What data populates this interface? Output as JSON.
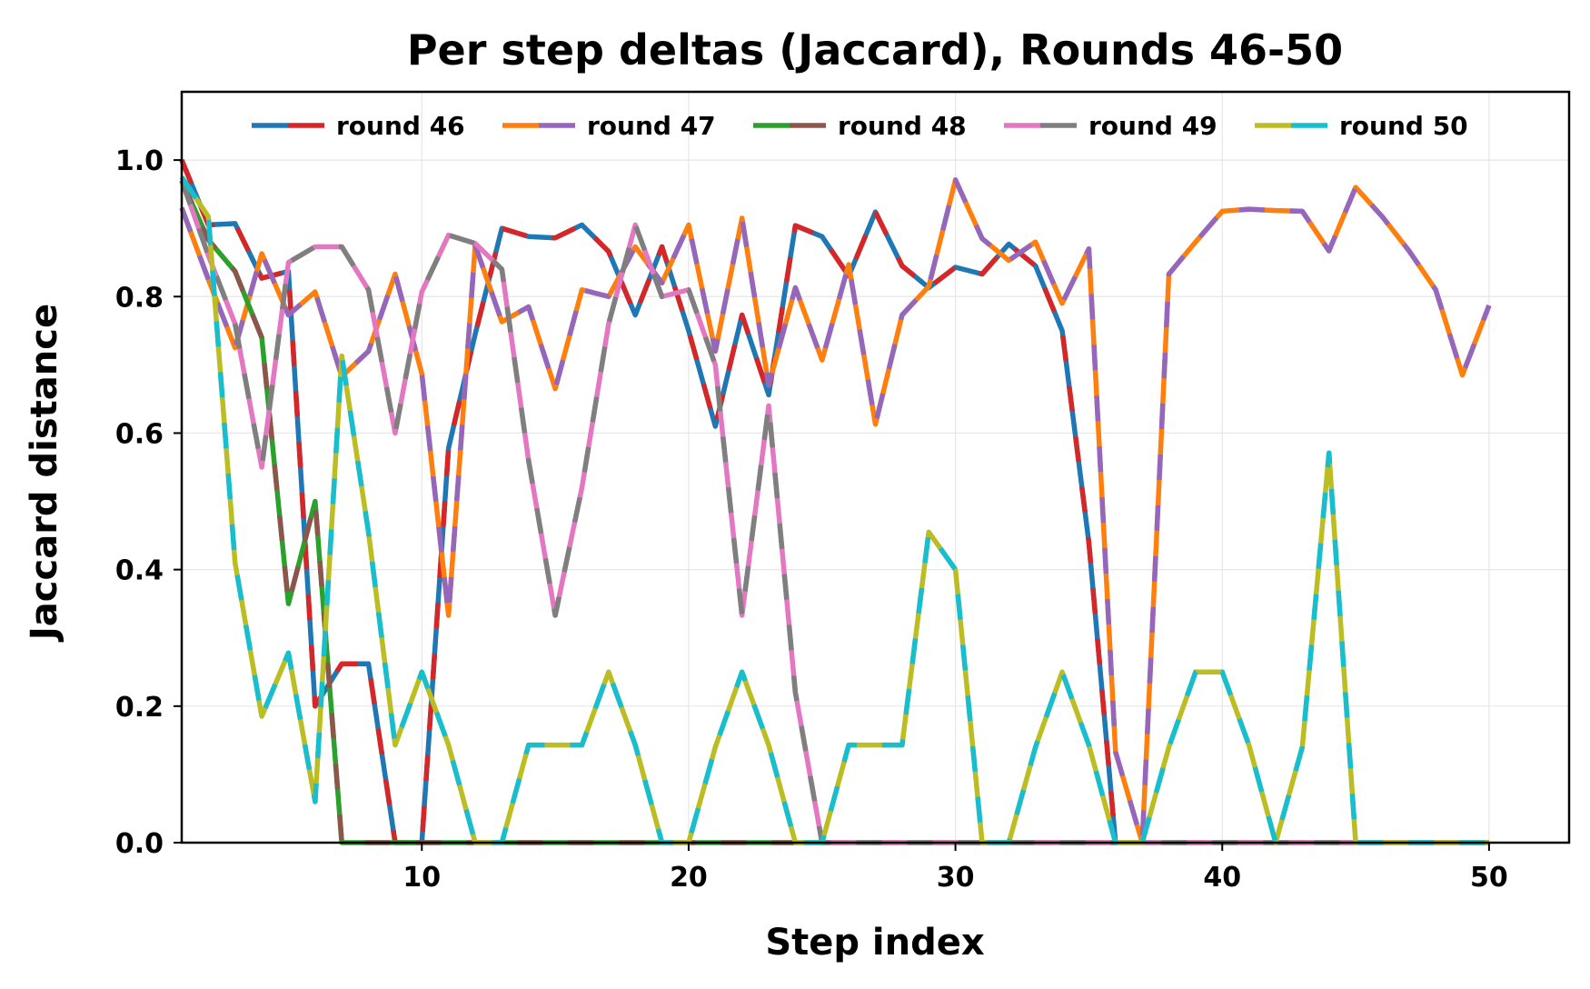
{
  "chart_data": {
    "type": "line",
    "title": "Per step deltas (Jaccard), Rounds 46-50",
    "xlabel": "Step index",
    "ylabel": "Jaccard distance",
    "xlim": [
      1,
      53
    ],
    "ylim": [
      0,
      1.1
    ],
    "xticks": [
      10,
      20,
      30,
      40,
      50
    ],
    "yticks": [
      0.0,
      0.2,
      0.4,
      0.6,
      0.8,
      1.0
    ],
    "grid": true,
    "legend_placement": "top-center",
    "series": [
      {
        "name": "round 46",
        "colors": [
          "#1f77b4",
          "#d62728"
        ],
        "x": [
          1,
          2,
          3,
          4,
          5,
          6,
          7,
          8,
          9,
          10,
          11,
          12,
          13,
          14,
          15,
          16,
          17,
          18,
          19,
          20,
          21,
          22,
          23,
          24,
          25,
          26,
          27,
          28,
          29,
          30,
          31,
          32,
          33,
          34,
          35,
          36
        ],
        "y": [
          1.0,
          0.905,
          0.907,
          0.827,
          0.837,
          0.2,
          0.262,
          0.262,
          0,
          0,
          0.578,
          0.745,
          0.9,
          0.888,
          0.886,
          0.905,
          0.866,
          0.773,
          0.873,
          0.75,
          0.61,
          0.773,
          0.656,
          0.904,
          0.888,
          0.83,
          0.924,
          0.845,
          0.813,
          0.843,
          0.833,
          0.877,
          0.845,
          0.75,
          0.44,
          0
        ]
      },
      {
        "name": "round 47",
        "colors": [
          "#ff7f0e",
          "#9467bd"
        ],
        "x": [
          1,
          2,
          3,
          4,
          5,
          6,
          7,
          8,
          9,
          10,
          11,
          12,
          13,
          14,
          15,
          16,
          17,
          18,
          19,
          20,
          21,
          22,
          23,
          24,
          25,
          26,
          27,
          28,
          29,
          30,
          31,
          32,
          33,
          34,
          35,
          36,
          37,
          38,
          39,
          40,
          41,
          42,
          43,
          44,
          45,
          46,
          47,
          48,
          49,
          50
        ],
        "y": [
          0.93,
          0.825,
          0.725,
          0.863,
          0.773,
          0.807,
          0.683,
          0.72,
          0.833,
          0.687,
          0.333,
          0.875,
          0.763,
          0.785,
          0.665,
          0.81,
          0.8,
          0.873,
          0.82,
          0.905,
          0.72,
          0.915,
          0.67,
          0.813,
          0.707,
          0.847,
          0.613,
          0.773,
          0.815,
          0.971,
          0.885,
          0.853,
          0.88,
          0.79,
          0.87,
          0.133,
          0,
          0.833,
          0.88,
          0.925,
          0.928,
          0.926,
          0.925,
          0.867,
          0.96,
          0.917,
          0.867,
          0.81,
          0.685,
          0.787
        ]
      },
      {
        "name": "round 48",
        "colors": [
          "#2ca02c",
          "#8c564b"
        ],
        "x": [
          1,
          2,
          3,
          4,
          5,
          6,
          7,
          8,
          9,
          10,
          11,
          12,
          13,
          14,
          15,
          16,
          17,
          18,
          19,
          20,
          21,
          22,
          23,
          24,
          25,
          26,
          27,
          28,
          29,
          30,
          31,
          32,
          33,
          34,
          35,
          36,
          37,
          38,
          39,
          40,
          41,
          42,
          43,
          44,
          45,
          46,
          47,
          48,
          49,
          50
        ],
        "y": [
          0.97,
          0.883,
          0.837,
          0.74,
          0.35,
          0.5,
          0,
          0,
          0,
          0,
          0,
          0,
          0,
          0,
          0,
          0,
          0,
          0,
          0,
          0,
          0,
          0,
          0,
          0,
          0,
          0,
          0,
          0,
          0,
          0,
          0,
          0,
          0,
          0,
          0,
          0,
          0,
          0,
          0,
          0,
          0,
          0,
          0,
          0,
          0,
          0,
          0,
          0,
          0,
          0
        ]
      },
      {
        "name": "round 49",
        "colors": [
          "#e377c2",
          "#7f7f7f"
        ],
        "x": [
          1,
          2,
          3,
          4,
          5,
          6,
          7,
          8,
          9,
          10,
          11,
          12,
          13,
          14,
          15,
          16,
          17,
          18,
          19,
          20,
          21,
          22,
          23,
          24,
          25,
          26,
          27,
          28,
          29,
          30,
          31,
          32,
          33,
          34,
          35,
          36,
          37,
          38,
          39,
          40,
          41,
          42,
          43,
          44,
          45,
          46,
          47,
          48,
          49,
          50
        ],
        "y": [
          0.97,
          0.86,
          0.76,
          0.55,
          0.85,
          0.873,
          0.873,
          0.81,
          0.6,
          0.807,
          0.89,
          0.878,
          0.84,
          0.56,
          0.333,
          0.52,
          0.76,
          0.905,
          0.8,
          0.81,
          0.7,
          0.333,
          0.64,
          0.22,
          0,
          0,
          0,
          0,
          0,
          0,
          0,
          0,
          0,
          0,
          0,
          0,
          0,
          0,
          0,
          0,
          0,
          0,
          0,
          0,
          0,
          0,
          0,
          0,
          0,
          0
        ]
      },
      {
        "name": "round 50",
        "colors": [
          "#bcbd22",
          "#17becf"
        ],
        "x": [
          1,
          2,
          3,
          4,
          5,
          6,
          7,
          8,
          9,
          10,
          11,
          12,
          13,
          14,
          15,
          16,
          17,
          18,
          19,
          20,
          21,
          22,
          23,
          24,
          25,
          26,
          27,
          28,
          29,
          30,
          31,
          32,
          33,
          34,
          35,
          36,
          37,
          38,
          39,
          40,
          41,
          42,
          43,
          44,
          45,
          46,
          47,
          48,
          49,
          50
        ],
        "y": [
          0.975,
          0.917,
          0.41,
          0.185,
          0.278,
          0.06,
          0.713,
          0.455,
          0.143,
          0.25,
          0.143,
          0,
          0,
          0.143,
          0.143,
          0.143,
          0.25,
          0.143,
          0,
          0,
          0.14,
          0.25,
          0.143,
          0,
          0,
          0.143,
          0.143,
          0.143,
          0.455,
          0.4,
          0,
          0,
          0.14,
          0.25,
          0.143,
          0,
          0,
          0.14,
          0.25,
          0.25,
          0.143,
          0,
          0.14,
          0.571,
          0,
          0,
          0,
          0,
          0,
          0
        ]
      }
    ]
  }
}
